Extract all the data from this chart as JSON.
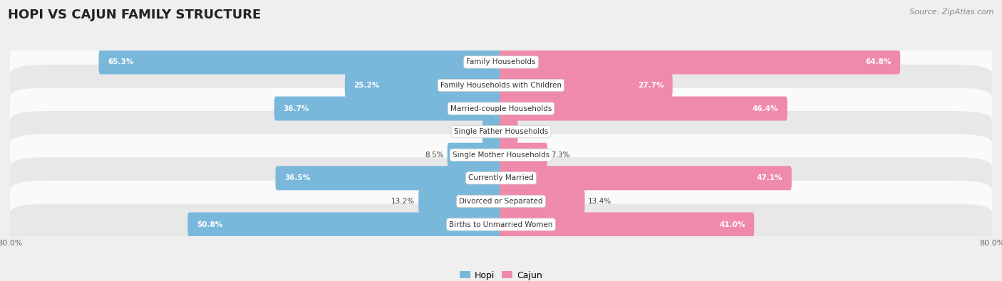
{
  "title": "HOPI VS CAJUN FAMILY STRUCTURE",
  "source": "Source: ZipAtlas.com",
  "categories": [
    "Family Households",
    "Family Households with Children",
    "Married-couple Households",
    "Single Father Households",
    "Single Mother Households",
    "Currently Married",
    "Divorced or Separated",
    "Births to Unmarried Women"
  ],
  "hopi_values": [
    65.3,
    25.2,
    36.7,
    2.8,
    8.5,
    36.5,
    13.2,
    50.8
  ],
  "cajun_values": [
    64.8,
    27.7,
    46.4,
    2.5,
    7.3,
    47.1,
    13.4,
    41.0
  ],
  "hopi_color": "#7ab8db",
  "cajun_color": "#f08aaa",
  "axis_max": 80.0,
  "bg_color": "#efefef",
  "row_colors": [
    "#fafafa",
    "#e8e8e8"
  ],
  "title_fontsize": 13,
  "label_fontsize": 7.5,
  "value_fontsize": 7.5,
  "legend_fontsize": 9,
  "source_fontsize": 8
}
